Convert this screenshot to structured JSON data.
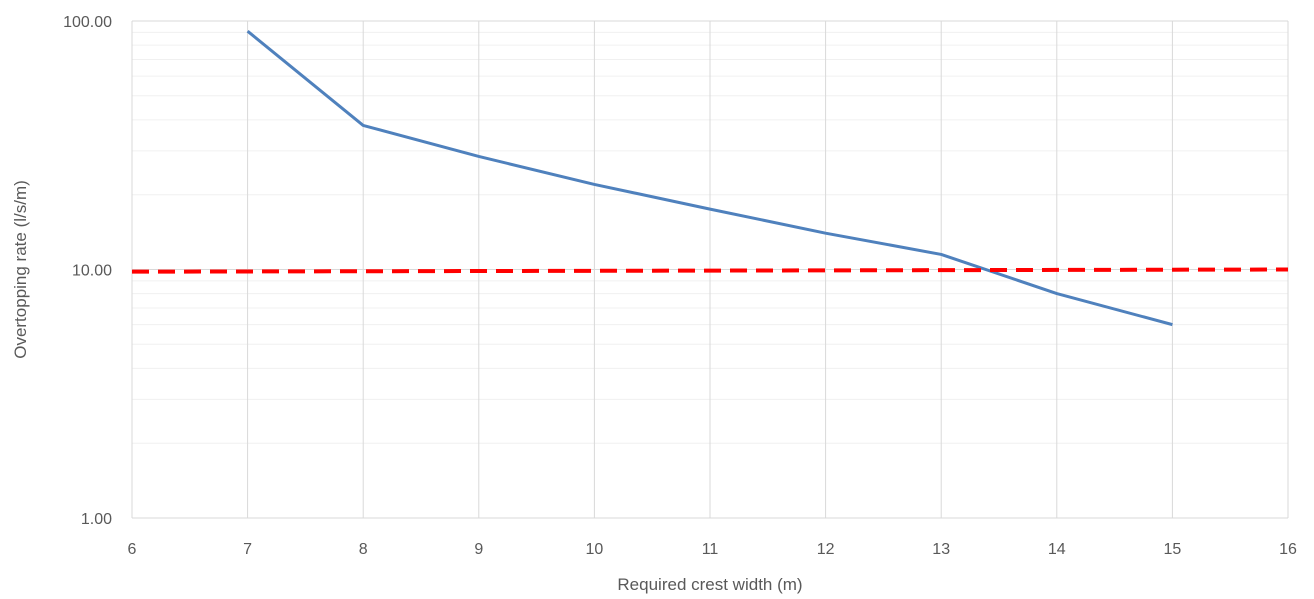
{
  "chart_data": {
    "type": "line",
    "title": "",
    "xlabel": "Required crest width (m)",
    "ylabel": "Overtopping rate (l/s/m)",
    "xlim": [
      6,
      16
    ],
    "ylim": [
      1,
      100
    ],
    "yscale": "log",
    "x_ticks": [
      "6",
      "7",
      "8",
      "9",
      "10",
      "11",
      "12",
      "13",
      "14",
      "15",
      "16"
    ],
    "y_ticks": [
      "1.00",
      "10.00",
      "100.00"
    ],
    "grid": true,
    "legend": "none",
    "series": [
      {
        "color": "#4f81bd",
        "style": "solid",
        "x": [
          7,
          8,
          9,
          10,
          11,
          12,
          13,
          14,
          15
        ],
        "y": [
          91,
          38,
          28.5,
          22,
          17.5,
          14,
          11.5,
          8,
          6
        ]
      },
      {
        "color": "#ff0000",
        "style": "dashed",
        "x": [
          6,
          16
        ],
        "y": [
          9.8,
          10
        ]
      }
    ]
  }
}
